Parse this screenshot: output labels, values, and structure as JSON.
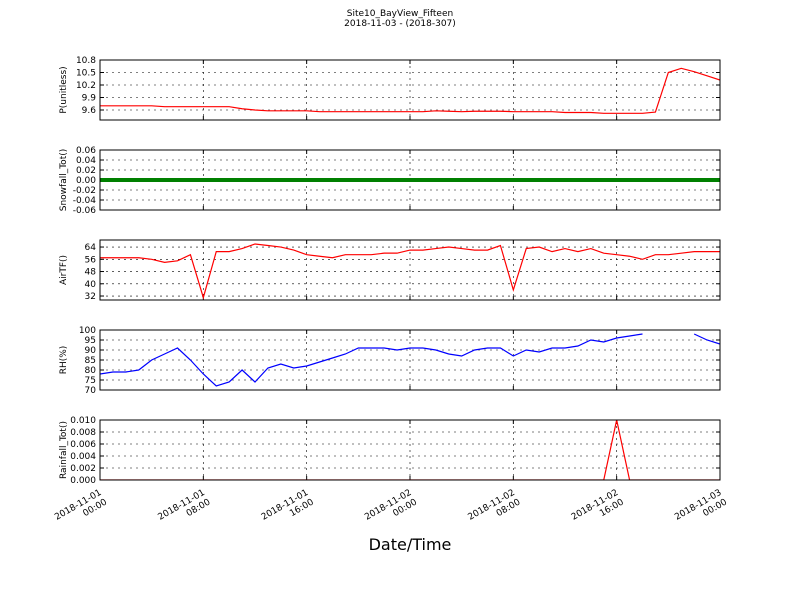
{
  "chart_data": [
    {
      "type": "line",
      "title": "Site10_BayView_Fifteen",
      "subtitle": "2018-11-03 - (2018-307)",
      "ylabel": "P(unitless)",
      "color": "#ff0000",
      "grid": true,
      "x": [
        "2018-11-01 00:00",
        "2018-11-01 01:00",
        "2018-11-01 02:00",
        "2018-11-01 03:00",
        "2018-11-01 04:00",
        "2018-11-01 05:00",
        "2018-11-01 06:00",
        "2018-11-01 07:00",
        "2018-11-01 08:00",
        "2018-11-01 09:00",
        "2018-11-01 10:00",
        "2018-11-01 11:00",
        "2018-11-01 12:00",
        "2018-11-01 13:00",
        "2018-11-01 14:00",
        "2018-11-01 15:00",
        "2018-11-01 16:00",
        "2018-11-01 17:00",
        "2018-11-01 18:00",
        "2018-11-01 19:00",
        "2018-11-01 20:00",
        "2018-11-01 21:00",
        "2018-11-01 22:00",
        "2018-11-01 23:00",
        "2018-11-02 00:00",
        "2018-11-02 01:00",
        "2018-11-02 02:00",
        "2018-11-02 03:00",
        "2018-11-02 04:00",
        "2018-11-02 05:00",
        "2018-11-02 06:00",
        "2018-11-02 07:00",
        "2018-11-02 08:00",
        "2018-11-02 09:00",
        "2018-11-02 10:00",
        "2018-11-02 11:00",
        "2018-11-02 12:00",
        "2018-11-02 13:00",
        "2018-11-02 14:00",
        "2018-11-02 15:00",
        "2018-11-02 16:00",
        "2018-11-02 17:00",
        "2018-11-02 18:00",
        "2018-11-02 19:00",
        "2018-11-02 20:00",
        "2018-11-02 21:00",
        "2018-11-02 22:00",
        "2018-11-02 23:00",
        "2018-11-03 00:00"
      ],
      "values": [
        9.7,
        9.7,
        9.7,
        9.7,
        9.7,
        9.68,
        9.68,
        9.68,
        9.68,
        9.68,
        9.68,
        9.63,
        9.6,
        9.58,
        9.58,
        9.58,
        9.58,
        9.56,
        9.56,
        9.56,
        9.56,
        9.56,
        9.56,
        9.56,
        9.56,
        9.56,
        9.58,
        9.57,
        9.56,
        9.57,
        9.57,
        9.57,
        9.56,
        9.56,
        9.56,
        9.56,
        9.54,
        9.54,
        9.54,
        9.52,
        9.52,
        9.52,
        9.52,
        9.55,
        10.5,
        10.6,
        10.52,
        10.42,
        10.32
      ],
      "ylim": [
        9.36,
        10.8
      ],
      "yticks": [
        9.6,
        9.9,
        10.2,
        10.5,
        10.8
      ]
    },
    {
      "type": "line",
      "ylabel": "Snowfall_Tot()",
      "color": "#008000",
      "grid": true,
      "x": [
        "2018-11-01 00:00",
        "2018-11-01 01:00",
        "2018-11-01 02:00",
        "2018-11-01 03:00",
        "2018-11-01 04:00",
        "2018-11-01 05:00",
        "2018-11-01 06:00",
        "2018-11-01 07:00",
        "2018-11-01 08:00",
        "2018-11-01 09:00",
        "2018-11-01 10:00",
        "2018-11-01 11:00",
        "2018-11-01 12:00",
        "2018-11-01 13:00",
        "2018-11-01 14:00",
        "2018-11-01 15:00",
        "2018-11-01 16:00",
        "2018-11-01 17:00",
        "2018-11-01 18:00",
        "2018-11-01 19:00",
        "2018-11-01 20:00",
        "2018-11-01 21:00",
        "2018-11-01 22:00",
        "2018-11-01 23:00",
        "2018-11-02 00:00",
        "2018-11-02 01:00",
        "2018-11-02 02:00",
        "2018-11-02 03:00",
        "2018-11-02 04:00",
        "2018-11-02 05:00",
        "2018-11-02 06:00",
        "2018-11-02 07:00",
        "2018-11-02 08:00",
        "2018-11-02 09:00",
        "2018-11-02 10:00",
        "2018-11-02 11:00",
        "2018-11-02 12:00",
        "2018-11-02 13:00",
        "2018-11-02 14:00",
        "2018-11-02 15:00",
        "2018-11-02 16:00",
        "2018-11-02 17:00",
        "2018-11-02 18:00",
        "2018-11-02 19:00",
        "2018-11-02 20:00",
        "2018-11-02 21:00",
        "2018-11-02 22:00",
        "2018-11-02 23:00",
        "2018-11-03 00:00"
      ],
      "values": [
        0,
        0,
        0,
        0,
        0,
        0,
        0,
        0,
        0,
        0,
        0,
        0,
        0,
        0,
        0,
        0,
        0,
        0,
        0,
        0,
        0,
        0,
        0,
        0,
        0,
        0,
        0,
        0,
        0,
        0,
        0,
        0,
        0,
        0,
        0,
        0,
        0,
        0,
        0,
        0,
        0,
        0,
        0,
        0,
        0,
        0,
        0,
        0,
        0
      ],
      "ylim": [
        -0.06,
        0.06
      ],
      "yticks": [
        -0.06,
        -0.04,
        -0.02,
        {
          "value": 0,
          "label": "0.00"
        },
        0.02,
        0.04,
        0.06
      ]
    },
    {
      "type": "line",
      "ylabel": "AirTF()",
      "color": "#ff0000",
      "grid": true,
      "x": [
        "2018-11-01 00:00",
        "2018-11-01 01:00",
        "2018-11-01 02:00",
        "2018-11-01 03:00",
        "2018-11-01 04:00",
        "2018-11-01 05:00",
        "2018-11-01 06:00",
        "2018-11-01 07:00",
        "2018-11-01 08:00",
        "2018-11-01 09:00",
        "2018-11-01 10:00",
        "2018-11-01 11:00",
        "2018-11-01 12:00",
        "2018-11-01 13:00",
        "2018-11-01 14:00",
        "2018-11-01 15:00",
        "2018-11-01 16:00",
        "2018-11-01 17:00",
        "2018-11-01 18:00",
        "2018-11-01 19:00",
        "2018-11-01 20:00",
        "2018-11-01 21:00",
        "2018-11-01 22:00",
        "2018-11-01 23:00",
        "2018-11-02 00:00",
        "2018-11-02 01:00",
        "2018-11-02 02:00",
        "2018-11-02 03:00",
        "2018-11-02 04:00",
        "2018-11-02 05:00",
        "2018-11-02 06:00",
        "2018-11-02 07:00",
        "2018-11-02 08:00",
        "2018-11-02 09:00",
        "2018-11-02 10:00",
        "2018-11-02 11:00",
        "2018-11-02 12:00",
        "2018-11-02 13:00",
        "2018-11-02 14:00",
        "2018-11-02 15:00",
        "2018-11-02 16:00",
        "2018-11-02 17:00",
        "2018-11-02 18:00",
        "2018-11-02 19:00",
        "2018-11-02 20:00",
        "2018-11-02 21:00",
        "2018-11-02 22:00",
        "2018-11-02 23:00",
        "2018-11-03 00:00"
      ],
      "values": [
        57,
        57,
        57,
        57,
        56,
        54,
        55,
        59,
        31,
        61,
        61,
        63,
        66,
        65,
        64,
        62,
        59,
        58,
        57,
        59,
        59,
        59,
        60,
        60,
        62,
        62,
        63,
        64,
        63,
        62,
        62,
        65,
        36,
        63,
        64,
        61,
        63,
        61,
        63,
        60,
        59,
        58,
        56,
        59,
        59,
        60,
        61,
        61,
        61
      ],
      "ylim": [
        29.4,
        68.6
      ],
      "yticks": [
        32,
        40,
        48,
        56,
        64
      ]
    },
    {
      "type": "line",
      "ylabel": "RH(%)",
      "color": "#0000ff",
      "grid": true,
      "x": [
        "2018-11-01 00:00",
        "2018-11-01 01:00",
        "2018-11-01 02:00",
        "2018-11-01 03:00",
        "2018-11-01 04:00",
        "2018-11-01 05:00",
        "2018-11-01 06:00",
        "2018-11-01 07:00",
        "2018-11-01 08:00",
        "2018-11-01 09:00",
        "2018-11-01 10:00",
        "2018-11-01 11:00",
        "2018-11-01 12:00",
        "2018-11-01 13:00",
        "2018-11-01 14:00",
        "2018-11-01 15:00",
        "2018-11-01 16:00",
        "2018-11-01 17:00",
        "2018-11-01 18:00",
        "2018-11-01 19:00",
        "2018-11-01 20:00",
        "2018-11-01 21:00",
        "2018-11-01 22:00",
        "2018-11-01 23:00",
        "2018-11-02 00:00",
        "2018-11-02 01:00",
        "2018-11-02 02:00",
        "2018-11-02 03:00",
        "2018-11-02 04:00",
        "2018-11-02 05:00",
        "2018-11-02 06:00",
        "2018-11-02 07:00",
        "2018-11-02 08:00",
        "2018-11-02 09:00",
        "2018-11-02 10:00",
        "2018-11-02 11:00",
        "2018-11-02 12:00",
        "2018-11-02 13:00",
        "2018-11-02 14:00",
        "2018-11-02 15:00",
        "2018-11-02 16:00",
        "2018-11-02 17:00",
        "2018-11-02 18:00",
        "2018-11-02 19:00",
        "2018-11-02 20:00",
        "2018-11-02 21:00",
        "2018-11-02 22:00",
        "2018-11-02 23:00",
        "2018-11-03 00:00"
      ],
      "values": [
        78,
        79,
        79,
        80,
        85,
        88,
        91,
        85,
        78,
        72,
        74,
        80,
        74,
        81,
        83,
        81,
        82,
        84,
        86,
        88,
        91,
        91,
        91,
        90,
        91,
        91,
        90,
        88,
        87,
        90,
        91,
        91,
        87,
        90,
        89,
        91,
        91,
        92,
        95,
        94,
        96,
        97,
        98,
        null,
        null,
        null,
        98,
        95,
        93
      ],
      "ylim": [
        70,
        100
      ],
      "yticks": [
        70,
        75,
        80,
        85,
        90,
        95,
        100
      ]
    },
    {
      "type": "line",
      "ylabel": "Rainfall_Tot()",
      "xlabel": "Date/Time",
      "color": "#ff0000",
      "grid": true,
      "x": [
        "2018-11-01 00:00",
        "2018-11-01 01:00",
        "2018-11-01 02:00",
        "2018-11-01 03:00",
        "2018-11-01 04:00",
        "2018-11-01 05:00",
        "2018-11-01 06:00",
        "2018-11-01 07:00",
        "2018-11-01 08:00",
        "2018-11-01 09:00",
        "2018-11-01 10:00",
        "2018-11-01 11:00",
        "2018-11-01 12:00",
        "2018-11-01 13:00",
        "2018-11-01 14:00",
        "2018-11-01 15:00",
        "2018-11-01 16:00",
        "2018-11-01 17:00",
        "2018-11-01 18:00",
        "2018-11-01 19:00",
        "2018-11-01 20:00",
        "2018-11-01 21:00",
        "2018-11-01 22:00",
        "2018-11-01 23:00",
        "2018-11-02 00:00",
        "2018-11-02 01:00",
        "2018-11-02 02:00",
        "2018-11-02 03:00",
        "2018-11-02 04:00",
        "2018-11-02 05:00",
        "2018-11-02 06:00",
        "2018-11-02 07:00",
        "2018-11-02 08:00",
        "2018-11-02 09:00",
        "2018-11-02 10:00",
        "2018-11-02 11:00",
        "2018-11-02 12:00",
        "2018-11-02 13:00",
        "2018-11-02 14:00",
        "2018-11-02 15:00",
        "2018-11-02 16:00",
        "2018-11-02 17:00",
        "2018-11-02 18:00",
        "2018-11-02 19:00",
        "2018-11-02 20:00",
        "2018-11-02 21:00",
        "2018-11-02 22:00",
        "2018-11-02 23:00",
        "2018-11-03 00:00"
      ],
      "values": [
        0,
        0,
        0,
        0,
        0,
        0,
        0,
        0,
        0,
        0,
        0,
        0,
        0,
        0,
        0,
        0,
        0,
        0,
        0,
        0,
        0,
        0,
        0,
        0,
        0,
        0,
        0,
        0,
        0,
        0,
        0,
        0,
        0,
        0,
        0,
        0,
        0,
        0,
        0,
        0,
        0.01,
        0,
        0,
        0,
        0,
        0,
        0,
        0,
        0
      ],
      "ylim": [
        0,
        0.01
      ],
      "yticks": [
        {
          "value": 0,
          "label": "0.000"
        },
        0.002,
        0.004,
        0.006,
        0.008,
        {
          "value": 0.01,
          "label": "0.010"
        }
      ],
      "xlim": [
        "2018-11-01 00:00",
        "2018-11-03 00:00"
      ],
      "xticks": [
        "2018-11-01 00:00",
        "2018-11-01 08:00",
        "2018-11-01 16:00",
        "2018-11-02 00:00",
        "2018-11-02 08:00",
        "2018-11-02 16:00",
        "2018-11-03 00:00"
      ]
    }
  ]
}
